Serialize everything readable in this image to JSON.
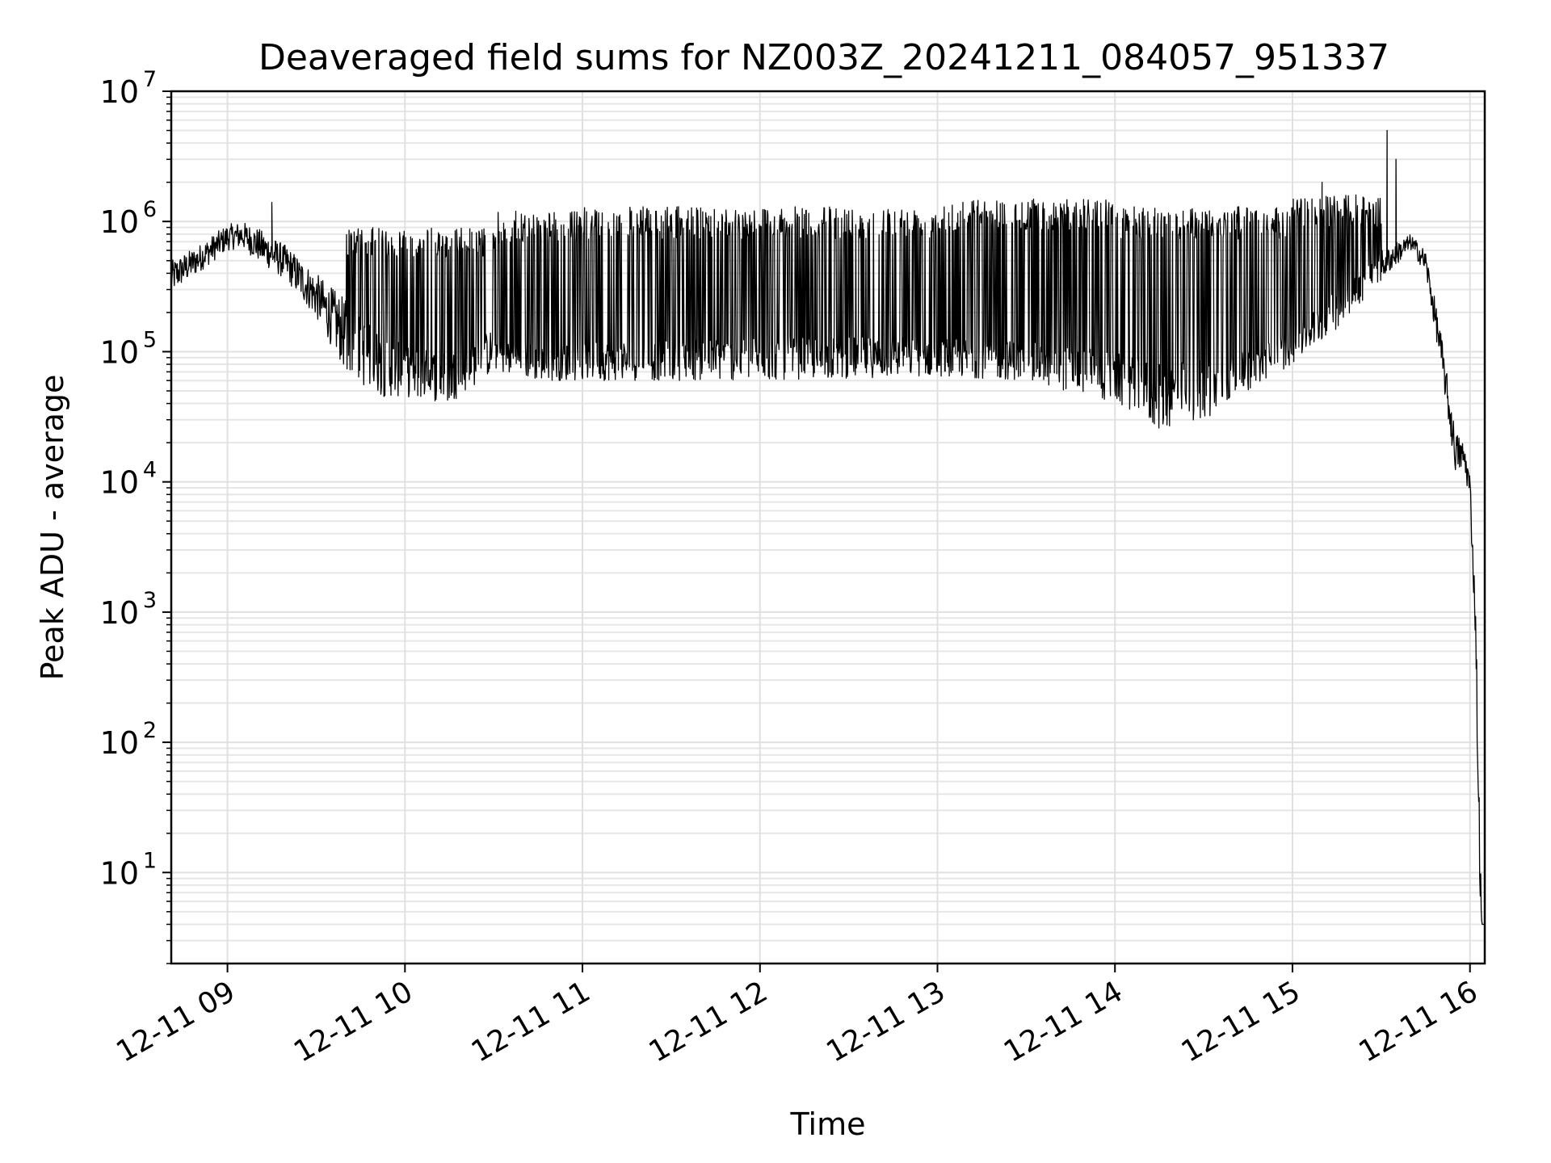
{
  "chart_data": {
    "type": "line",
    "title": "Deaveraged field sums for NZ003Z_20241211_084057_951337",
    "xlabel": "Time",
    "ylabel": "Peak ADU - average",
    "yscale": "log",
    "ylim": [
      2,
      10000000
    ],
    "xlim": [
      "2024-12-11 08:41",
      "2024-12-11 16:05"
    ],
    "grid": true,
    "x_ticks": [
      {
        "t": "2024-12-11 09:00",
        "label": "12-11 09"
      },
      {
        "t": "2024-12-11 10:00",
        "label": "12-11 10"
      },
      {
        "t": "2024-12-11 11:00",
        "label": "12-11 11"
      },
      {
        "t": "2024-12-11 12:00",
        "label": "12-11 12"
      },
      {
        "t": "2024-12-11 13:00",
        "label": "12-11 13"
      },
      {
        "t": "2024-12-11 14:00",
        "label": "12-11 14"
      },
      {
        "t": "2024-12-11 15:00",
        "label": "12-11 15"
      },
      {
        "t": "2024-12-11 16:00",
        "label": "12-11 16"
      }
    ],
    "y_ticks": [
      {
        "value": 10,
        "base": "10",
        "exp": "1"
      },
      {
        "value": 100,
        "base": "10",
        "exp": "2"
      },
      {
        "value": 1000,
        "base": "10",
        "exp": "3"
      },
      {
        "value": 10000,
        "base": "10",
        "exp": "4"
      },
      {
        "value": 100000,
        "base": "10",
        "exp": "5"
      },
      {
        "value": 1000000,
        "base": "10",
        "exp": "6"
      },
      {
        "value": 10000000,
        "base": "10",
        "exp": "7"
      }
    ],
    "series": [
      {
        "color": "#000000",
        "envelope": {
          "description_points": [
            "time",
            "upper",
            "lower"
          ],
          "points": [
            [
              "2024-12-11 08:41",
              500000,
              280000
            ],
            [
              "2024-12-11 08:50",
              650000,
              400000
            ],
            [
              "2024-12-11 09:00",
              950000,
              600000
            ],
            [
              "2024-12-11 09:05",
              1000000,
              620000
            ],
            [
              "2024-12-11 09:10",
              900000,
              500000
            ],
            [
              "2024-12-11 09:20",
              650000,
              350000
            ],
            [
              "2024-12-11 09:30",
              400000,
              180000
            ],
            [
              "2024-12-11 09:40",
              250000,
              70000
            ],
            [
              "2024-12-11 09:50",
              150000,
              45000
            ],
            [
              "2024-12-11 10:00",
              110000,
              45000
            ],
            [
              "2024-12-11 10:15",
              100000,
              40000
            ],
            [
              "2024-12-11 10:30",
              150000,
              70000
            ],
            [
              "2024-12-11 10:45",
              110000,
              60000
            ],
            [
              "2024-12-11 11:00",
              120000,
              60000
            ],
            [
              "2024-12-11 12:00",
              130000,
              60000
            ],
            [
              "2024-12-11 13:00",
              130000,
              65000
            ],
            [
              "2024-12-11 13:30",
              120000,
              60000
            ],
            [
              "2024-12-11 14:00",
              100000,
              40000
            ],
            [
              "2024-12-11 14:15",
              80000,
              25000
            ],
            [
              "2024-12-11 14:30",
              90000,
              30000
            ],
            [
              "2024-12-11 14:45",
              100000,
              50000
            ],
            [
              "2024-12-11 15:00",
              150000,
              80000
            ],
            [
              "2024-12-11 15:15",
              300000,
              150000
            ],
            [
              "2024-12-11 15:30",
              600000,
              350000
            ],
            [
              "2024-12-11 15:40",
              800000,
              600000
            ],
            [
              "2024-12-11 15:45",
              600000,
              400000
            ],
            [
              "2024-12-11 15:50",
              150000,
              80000
            ],
            [
              "2024-12-11 15:55",
              25000,
              12000
            ],
            [
              "2024-12-11 15:58",
              20000,
              12000
            ],
            [
              "2024-12-11 16:00",
              12000,
              7000
            ],
            [
              "2024-12-11 16:02",
              1000,
              500
            ],
            [
              "2024-12-11 16:03",
              60,
              10
            ],
            [
              "2024-12-11 16:04",
              4,
              4
            ],
            [
              "2024-12-11 16:05",
              4,
              4
            ]
          ]
        },
        "spikes": {
          "description_points": [
            "start",
            "end",
            "peak"
          ],
          "ranges": [
            [
              "2024-12-11 09:40",
              "2024-12-11 10:30",
              900000
            ],
            [
              "2024-12-11 10:30",
              "2024-12-11 11:00",
              1200000
            ],
            [
              "2024-12-11 11:00",
              "2024-12-11 12:00",
              1300000
            ],
            [
              "2024-12-11 12:00",
              "2024-12-11 13:00",
              1300000
            ],
            [
              "2024-12-11 13:00",
              "2024-12-11 14:00",
              1500000
            ],
            [
              "2024-12-11 14:00",
              "2024-12-11 15:00",
              1300000
            ],
            [
              "2024-12-11 15:00",
              "2024-12-11 15:30",
              1600000
            ]
          ]
        },
        "notable_peaks": [
          [
            "2024-12-11 09:15",
            1400000
          ],
          [
            "2024-12-11 15:10",
            2000000
          ],
          [
            "2024-12-11 15:32",
            5000000
          ],
          [
            "2024-12-11 15:35",
            3000000
          ]
        ]
      }
    ]
  }
}
